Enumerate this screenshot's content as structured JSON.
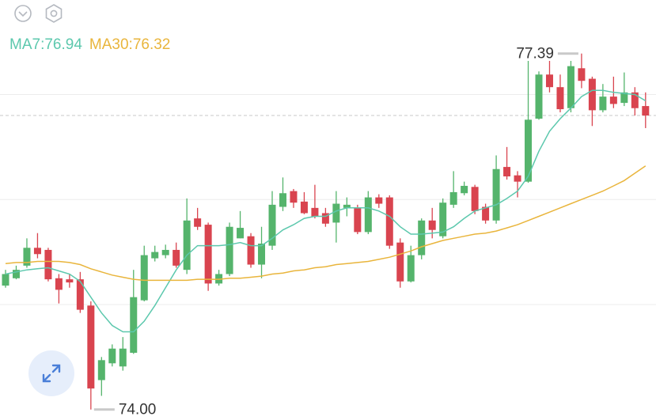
{
  "chart_data": {
    "type": "candlestick",
    "open": [
      75.18,
      75.25,
      75.37,
      75.54,
      75.52,
      75.25,
      75.24,
      75.24,
      74.99,
      74.28,
      74.44,
      74.41,
      74.54,
      75.04,
      75.44,
      75.47,
      75.52,
      75.33,
      75.82,
      75.76,
      75.2,
      75.29,
      75.63,
      75.65,
      75.38,
      75.56,
      75.93,
      76.08,
      75.98,
      75.92,
      75.87,
      75.78,
      75.92,
      75.92,
      75.69,
      76.02,
      76.02,
      75.59,
      75.22,
      75.47,
      75.8,
      75.65,
      75.95,
      76.06,
      76.12,
      75.93,
      75.8,
      76.31,
      76.23,
      76.17,
      76.77,
      77.19,
      77.07,
      76.87,
      77.25,
      77.15,
      76.85,
      76.98,
      76.92,
      77.02,
      76.89
    ],
    "high": [
      75.33,
      75.37,
      75.63,
      75.68,
      75.54,
      75.29,
      75.29,
      75.31,
      75.03,
      74.5,
      74.62,
      74.69,
      75.33,
      75.56,
      75.56,
      75.57,
      75.59,
      76.01,
      75.92,
      75.78,
      75.33,
      75.78,
      75.89,
      75.68,
      75.74,
      76.08,
      76.21,
      76.1,
      76.07,
      76.14,
      75.92,
      76.08,
      76.02,
      75.95,
      76.08,
      76.05,
      76.04,
      75.63,
      75.56,
      75.82,
      75.92,
      76.01,
      76.27,
      76.17,
      76.14,
      75.96,
      76.42,
      76.5,
      76.27,
      77.32,
      77.22,
      77.32,
      77.19,
      77.32,
      77.39,
      77.17,
      77.1,
      77.17,
      77.21,
      77.07,
      77.02
    ],
    "low": [
      75.16,
      75.24,
      75.35,
      75.44,
      75.22,
      75.01,
      75.16,
      74.92,
      74.0,
      74.13,
      74.41,
      74.37,
      74.53,
      75.03,
      75.41,
      75.44,
      75.35,
      75.29,
      75.71,
      75.13,
      75.18,
      75.27,
      75.63,
      75.35,
      75.25,
      75.52,
      75.89,
      75.92,
      75.86,
      75.82,
      75.74,
      75.59,
      75.84,
      75.67,
      75.67,
      75.92,
      75.53,
      75.16,
      75.21,
      75.43,
      75.63,
      75.63,
      75.92,
      76.04,
      75.86,
      75.77,
      75.77,
      76.19,
      76.02,
      76.16,
      76.76,
      77.02,
      76.83,
      76.83,
      77.06,
      76.7,
      76.83,
      76.87,
      76.89,
      76.8,
      76.68
    ],
    "close": [
      75.29,
      75.33,
      75.54,
      75.48,
      75.24,
      75.14,
      75.21,
      74.95,
      74.2,
      74.47,
      74.58,
      74.58,
      75.07,
      75.47,
      75.5,
      75.52,
      75.37,
      75.8,
      75.74,
      75.2,
      75.29,
      75.74,
      75.73,
      75.38,
      75.58,
      75.95,
      76.06,
      75.97,
      75.87,
      75.84,
      75.77,
      75.96,
      75.95,
      75.69,
      76.02,
      75.96,
      75.56,
      75.22,
      75.47,
      75.8,
      75.71,
      75.97,
      76.07,
      76.13,
      75.89,
      75.8,
      76.29,
      76.22,
      76.17,
      76.76,
      77.19,
      77.07,
      76.86,
      77.27,
      77.13,
      76.85,
      76.98,
      76.91,
      77.02,
      76.87,
      76.8
    ],
    "up_color": "#55b46c",
    "down_color": "#d9444f",
    "series": [
      {
        "name": "MA7:76.94",
        "color": "#5cc8ad",
        "values": [
          75.29,
          75.31,
          75.33,
          75.34,
          75.35,
          75.32,
          75.29,
          75.22,
          75.07,
          74.92,
          74.8,
          74.74,
          74.74,
          74.84,
          74.99,
          75.16,
          75.33,
          75.47,
          75.56,
          75.56,
          75.56,
          75.57,
          75.59,
          75.56,
          75.56,
          75.63,
          75.71,
          75.76,
          75.82,
          75.84,
          75.84,
          75.89,
          75.92,
          75.92,
          75.92,
          75.89,
          75.84,
          75.74,
          75.67,
          75.67,
          75.68,
          75.69,
          75.74,
          75.82,
          75.89,
          75.92,
          75.95,
          76.01,
          76.08,
          76.22,
          76.46,
          76.65,
          76.77,
          76.87,
          76.98,
          77.04,
          77.04,
          77.02,
          77.01,
          77.0,
          76.94
        ]
      },
      {
        "name": "MA30:76.32",
        "color": "#e9b53c",
        "values": [
          75.39,
          75.4,
          75.4,
          75.41,
          75.41,
          75.41,
          75.4,
          75.38,
          75.34,
          75.31,
          75.28,
          75.26,
          75.24,
          75.23,
          75.23,
          75.23,
          75.23,
          75.23,
          75.24,
          75.24,
          75.24,
          75.25,
          75.25,
          75.26,
          75.27,
          75.29,
          75.3,
          75.32,
          75.33,
          75.35,
          75.36,
          75.38,
          75.39,
          75.4,
          75.41,
          75.43,
          75.45,
          75.48,
          75.51,
          75.55,
          75.58,
          75.61,
          75.63,
          75.65,
          75.67,
          75.68,
          75.7,
          75.73,
          75.76,
          75.8,
          75.84,
          75.88,
          75.92,
          75.96,
          76.0,
          76.04,
          76.08,
          76.13,
          76.18,
          76.25,
          76.32
        ]
      }
    ],
    "annotations": [
      {
        "value": 77.39,
        "label": "77.39"
      },
      {
        "value": 74,
        "label": "74.00"
      }
    ],
    "ylim": [
      73.9,
      77.9
    ],
    "yticks": [
      75,
      76,
      77
    ],
    "grid": true
  }
}
